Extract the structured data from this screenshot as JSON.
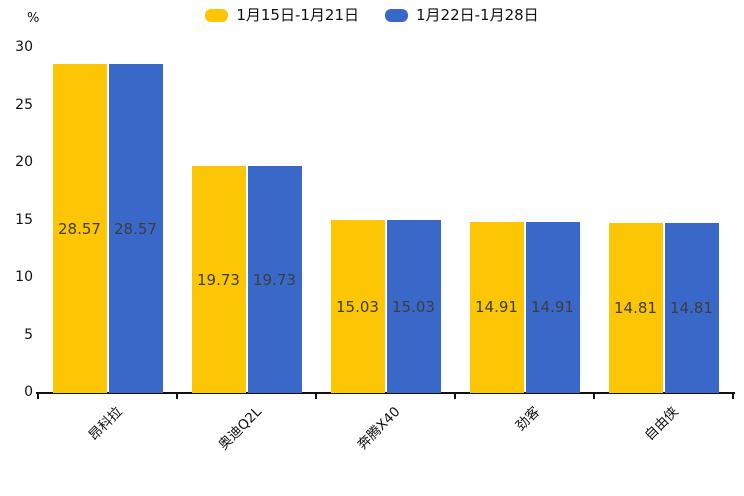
{
  "chart_data": {
    "type": "bar",
    "title": "",
    "unit_label": "%",
    "categories": [
      "昂科拉",
      "奥迪Q2L",
      "奔腾X40",
      "劲客",
      "自由侠"
    ],
    "series": [
      {
        "name": "1月15日-1月21日",
        "color": "#fdc605",
        "values": [
          28.57,
          19.73,
          15.03,
          14.91,
          14.81
        ]
      },
      {
        "name": "1月22日-1月28日",
        "color": "#3a68c9",
        "values": [
          28.57,
          19.73,
          15.03,
          14.91,
          14.81
        ]
      }
    ],
    "y_ticks": [
      0,
      5,
      10,
      15,
      20,
      25,
      30
    ],
    "ylim": [
      0,
      30
    ],
    "grid": false,
    "legend_position": "top-center",
    "value_labels_shown": true,
    "value_label_color": "#3d3d3d",
    "axis_color": "#111111"
  }
}
